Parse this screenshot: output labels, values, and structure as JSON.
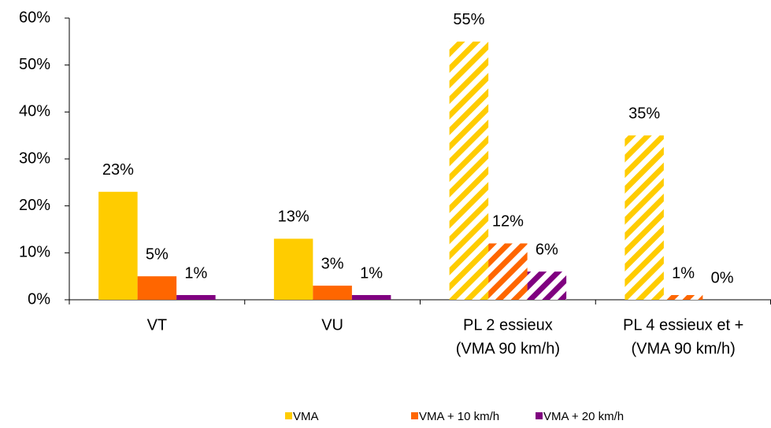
{
  "chart_data": {
    "type": "bar",
    "categories": [
      [
        "VT"
      ],
      [
        "VU"
      ],
      [
        "PL 2 essieux",
        "(VMA 90 km/h)"
      ],
      [
        "PL 4 essieux et +",
        "(VMA 90 km/h)"
      ]
    ],
    "hatched": [
      false,
      false,
      true,
      true
    ],
    "series": [
      {
        "name": "VMA",
        "color": "#ffcc00",
        "values": [
          23,
          13,
          55,
          35
        ],
        "value_labels": [
          "23%",
          "13%",
          "55%",
          "35%"
        ]
      },
      {
        "name": "VMA + 10 km/h",
        "color": "#ff6600",
        "values": [
          5,
          3,
          12,
          1
        ],
        "value_labels": [
          "5%",
          "3%",
          "12%",
          "1%"
        ]
      },
      {
        "name": "VMA + 20 km/h",
        "color": "#800080",
        "values": [
          1,
          1,
          6,
          0
        ],
        "value_labels": [
          "1%",
          "1%",
          "6%",
          "0%"
        ]
      }
    ],
    "ylim": [
      0,
      60
    ],
    "yticks": [
      {
        "value": 0,
        "label": "0%"
      },
      {
        "value": 10,
        "label": "10%"
      },
      {
        "value": 20,
        "label": "20%"
      },
      {
        "value": 30,
        "label": "30%"
      },
      {
        "value": 40,
        "label": "40%"
      },
      {
        "value": 50,
        "label": "50%"
      },
      {
        "value": 60,
        "label": "60%"
      }
    ],
    "legend": "bottom"
  }
}
